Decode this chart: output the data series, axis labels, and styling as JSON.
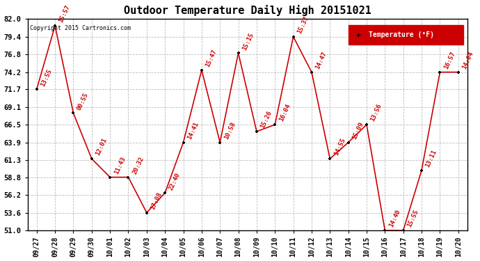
{
  "title": "Outdoor Temperature Daily High 20151021",
  "copyright_text": "Copyright 2015 Cartronics.com",
  "legend_label": "Temperature (°F)",
  "x_labels": [
    "09/27",
    "09/28",
    "09/29",
    "09/30",
    "10/01",
    "10/02",
    "10/03",
    "10/04",
    "10/05",
    "10/06",
    "10/07",
    "10/08",
    "10/09",
    "10/10",
    "10/11",
    "10/12",
    "10/13",
    "10/14",
    "10/15",
    "10/16",
    "10/17",
    "10/18",
    "10/19",
    "10/20"
  ],
  "y_values": [
    71.7,
    81.0,
    68.2,
    61.5,
    58.8,
    58.8,
    53.6,
    56.5,
    63.9,
    74.5,
    63.9,
    77.0,
    65.5,
    66.5,
    79.4,
    74.2,
    61.5,
    63.9,
    66.5,
    51.0,
    51.0,
    59.8,
    74.2,
    74.2
  ],
  "annotations": [
    "13:55",
    "15:57",
    "00:55",
    "12:01",
    "11:43",
    "20:32",
    "17:08",
    "22:40",
    "14:41",
    "15:47",
    "10:58",
    "15:15",
    "15:26",
    "16:04",
    "15:37",
    "14:47",
    "14:55",
    "15:09",
    "13:56",
    "14:40",
    "15:55",
    "13:11",
    "16:57",
    "14:04"
  ],
  "ylim": [
    51.0,
    82.0
  ],
  "yticks": [
    51.0,
    53.6,
    56.2,
    58.8,
    61.3,
    63.9,
    66.5,
    69.1,
    71.7,
    74.2,
    76.8,
    79.4,
    82.0
  ],
  "line_color": "#cc0000",
  "marker_color": "#000000",
  "bg_color": "#ffffff",
  "grid_color": "#aaaaaa",
  "annotation_color": "#cc0000",
  "legend_bg": "#cc0000",
  "legend_text_color": "#ffffff"
}
